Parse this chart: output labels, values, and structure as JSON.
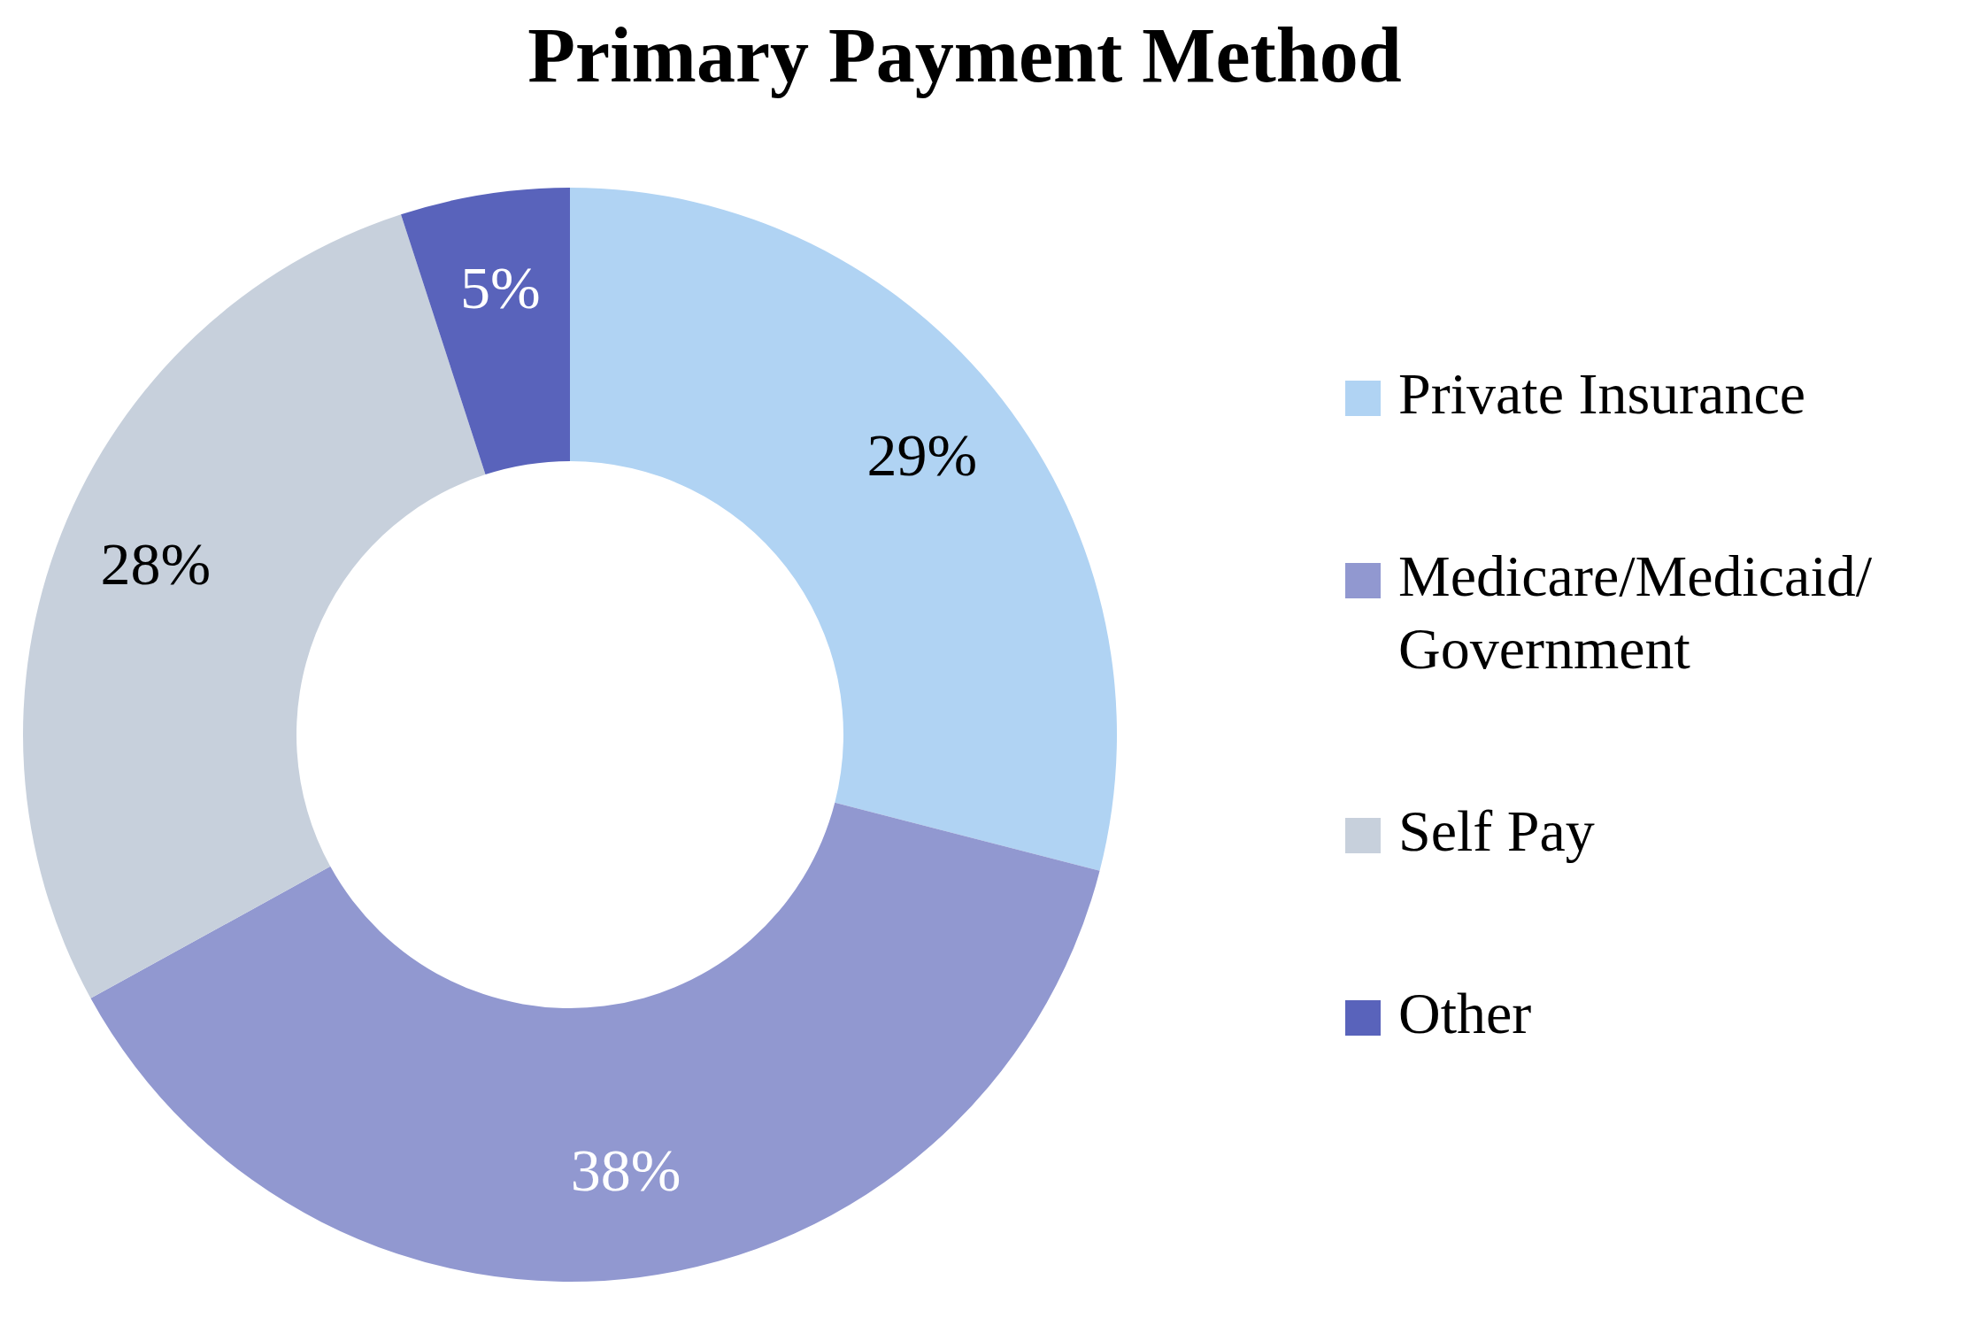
{
  "chart_data": {
    "type": "donut",
    "title": "Primary Payment Method",
    "categories": [
      "Private Insurance",
      "Medicare/Medicaid/Government",
      "Self Pay",
      "Other"
    ],
    "values": [
      29,
      38,
      28,
      5
    ],
    "colors": [
      "#b0d3f3",
      "#9198d0",
      "#c7d0dc",
      "#5963bb"
    ],
    "value_labels": [
      "29%",
      "38%",
      "28%",
      "5%"
    ],
    "legend": "right"
  }
}
